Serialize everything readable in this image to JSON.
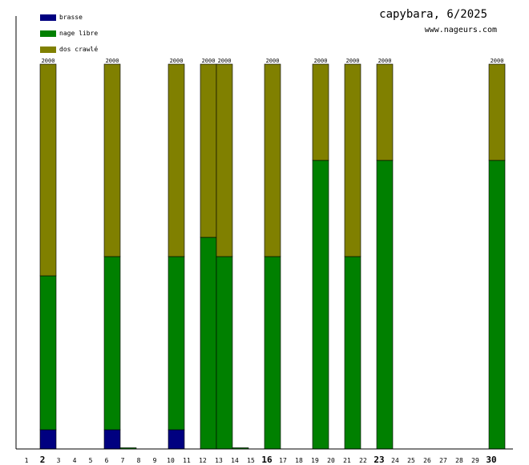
{
  "header": {
    "title": "capybara, 6/2025",
    "url": "www.nageurs.com"
  },
  "colors": {
    "brasse": "#000080",
    "nage_libre": "#008000",
    "dos_crawle": "#808000",
    "axis": "#000000",
    "background": "#ffffff"
  },
  "chart_data": {
    "type": "bar",
    "stacked": true,
    "title": "capybara, 6/2025",
    "xlabel": "",
    "ylabel": "",
    "ylim": [
      0,
      2000
    ],
    "legend_position": "top-left",
    "categories": [
      "1",
      "2",
      "3",
      "4",
      "5",
      "6",
      "7",
      "8",
      "9",
      "10",
      "11",
      "12",
      "13",
      "14",
      "15",
      "16",
      "17",
      "18",
      "19",
      "20",
      "21",
      "22",
      "23",
      "24",
      "25",
      "26",
      "27",
      "28",
      "29",
      "30"
    ],
    "emphasized_ticks": [
      "2",
      "16",
      "23",
      "30"
    ],
    "series": [
      {
        "name": "brasse",
        "color": "#000080",
        "values": [
          0,
          100,
          0,
          0,
          0,
          100,
          0,
          0,
          0,
          100,
          0,
          0,
          0,
          0,
          0,
          0,
          0,
          0,
          0,
          0,
          0,
          0,
          0,
          0,
          0,
          0,
          0,
          0,
          0,
          0
        ]
      },
      {
        "name": "nage libre",
        "color": "#008000",
        "values": [
          0,
          800,
          0,
          0,
          0,
          900,
          5,
          0,
          0,
          900,
          0,
          1100,
          1000,
          5,
          0,
          1000,
          0,
          0,
          1500,
          0,
          1000,
          0,
          1500,
          0,
          0,
          0,
          0,
          0,
          0,
          1500
        ]
      },
      {
        "name": "dos crawlé",
        "color": "#808000",
        "values": [
          0,
          1100,
          0,
          0,
          0,
          1000,
          0,
          0,
          0,
          1000,
          0,
          900,
          1000,
          0,
          0,
          1000,
          0,
          0,
          500,
          0,
          1000,
          0,
          500,
          0,
          0,
          0,
          0,
          0,
          0,
          500
        ]
      }
    ],
    "total_labels": [
      {
        "day": "2",
        "label": "2000"
      },
      {
        "day": "6",
        "label": "2000"
      },
      {
        "day": "10",
        "label": "2000"
      },
      {
        "day": "12",
        "label": "2000"
      },
      {
        "day": "13",
        "label": "2000"
      },
      {
        "day": "16",
        "label": "2000"
      },
      {
        "day": "19",
        "label": "2000"
      },
      {
        "day": "21",
        "label": "2000"
      },
      {
        "day": "23",
        "label": "2000"
      },
      {
        "day": "30",
        "label": "2000"
      }
    ]
  }
}
